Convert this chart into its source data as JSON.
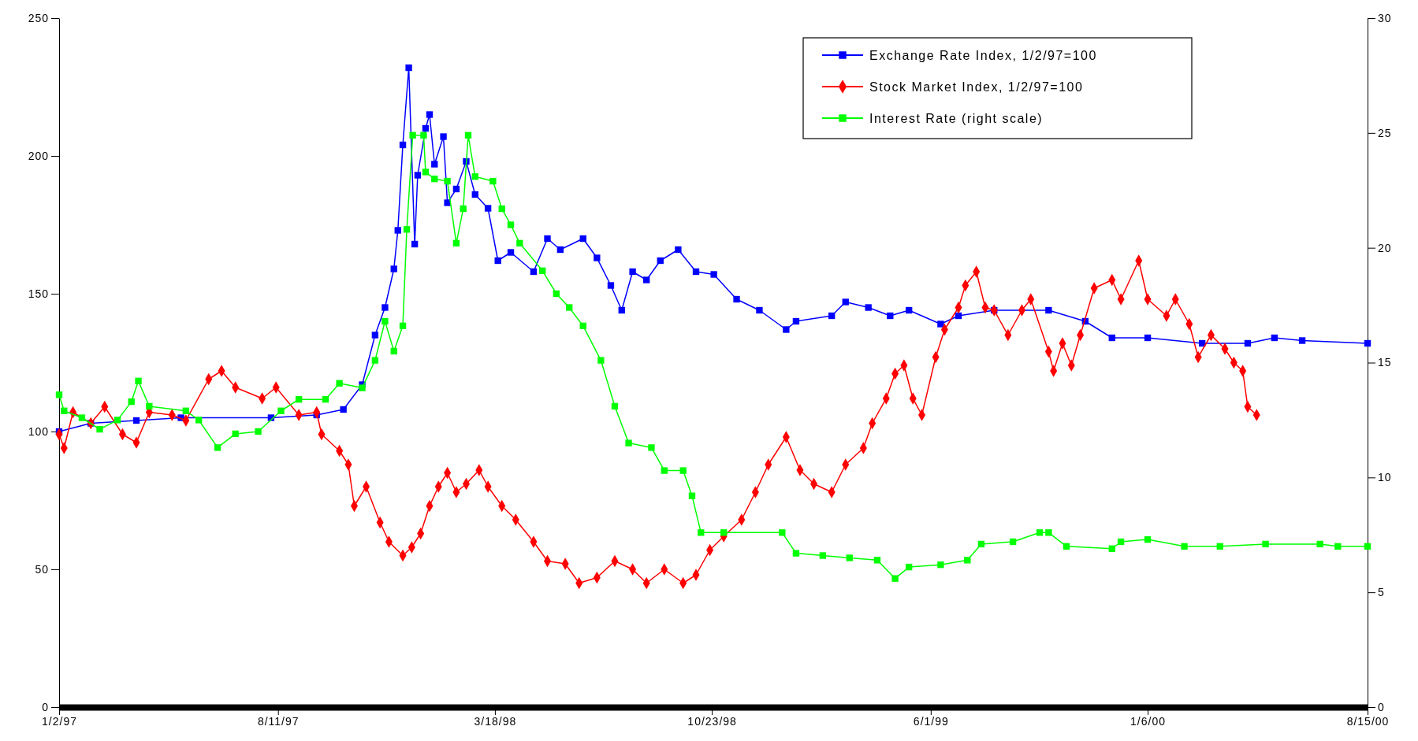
{
  "chart_data": {
    "type": "line",
    "legend": "top right",
    "xlim": [
      "1997-01-02",
      "2000-08-15"
    ],
    "xticks": [
      {
        "value": "1997-01-02",
        "label": "1/2/97"
      },
      {
        "value": "1997-08-11",
        "label": "8/11/97"
      },
      {
        "value": "1998-03-18",
        "label": "3/18/98"
      },
      {
        "value": "1998-10-23",
        "label": "10/23/98"
      },
      {
        "value": "1999-06-01",
        "label": "6/1/99"
      },
      {
        "value": "2000-01-06",
        "label": "1/6/00"
      },
      {
        "value": "2000-08-15",
        "label": "8/15/00"
      }
    ],
    "ylim": [
      0,
      250
    ],
    "yticks": [
      0,
      50,
      100,
      150,
      200,
      250
    ],
    "y2lim": [
      0,
      30
    ],
    "y2ticks": [
      0,
      5,
      10,
      15,
      20,
      25,
      30
    ],
    "series": [
      {
        "name": "Exchange Rate Index, 1/2/97=100",
        "color": "#0000ff",
        "marker": "square",
        "x": [
          "1997-01-02",
          "1997-02-03",
          "1997-03-21",
          "1997-05-05",
          "1997-08-04",
          "1997-09-19",
          "1997-10-16",
          "1997-11-04",
          "1997-11-17",
          "1997-11-27",
          "1997-12-06",
          "1997-12-10",
          "1997-12-15",
          "1997-12-21",
          "1997-12-27",
          "1997-12-30",
          "1998-01-07",
          "1998-01-11",
          "1998-01-16",
          "1998-01-25",
          "1998-01-29",
          "1998-02-07",
          "1998-02-17",
          "1998-02-26",
          "1998-03-11",
          "1998-03-21",
          "1998-04-03",
          "1998-04-26",
          "1998-05-10",
          "1998-05-23",
          "1998-06-15",
          "1998-06-29",
          "1998-07-13",
          "1998-07-24",
          "1998-08-04",
          "1998-08-18",
          "1998-09-01",
          "1998-09-19",
          "1998-10-07",
          "1998-10-25",
          "1998-11-17",
          "1998-12-10",
          "1999-01-06",
          "1999-01-16",
          "1999-02-21",
          "1999-03-07",
          "1999-03-30",
          "1999-04-21",
          "1999-05-10",
          "1999-06-11",
          "1999-06-29",
          "1999-08-04",
          "1999-09-28",
          "1999-11-04",
          "1999-12-01",
          "2000-01-06",
          "2000-03-01",
          "2000-04-16",
          "2000-05-13",
          "2000-06-10",
          "2000-08-15"
        ],
        "values": [
          100,
          103,
          104,
          105,
          105,
          106,
          108,
          117,
          135,
          145,
          159,
          173,
          204,
          232,
          168,
          193,
          210,
          215,
          197,
          207,
          183,
          188,
          198,
          186,
          181,
          162,
          165,
          158,
          170,
          166,
          170,
          163,
          153,
          144,
          158,
          155,
          162,
          166,
          158,
          157,
          148,
          144,
          137,
          140,
          142,
          147,
          145,
          142,
          144,
          139,
          142,
          144,
          144,
          140,
          134,
          134,
          132,
          132,
          134,
          133,
          132
        ]
      },
      {
        "name": "Stock Market Index, 1/2/97=100",
        "color": "#ff0000",
        "marker": "diamond",
        "x": [
          "1997-01-02",
          "1997-01-07",
          "1997-01-16",
          "1997-02-03",
          "1997-02-17",
          "1997-03-07",
          "1997-03-21",
          "1997-04-03",
          "1997-04-26",
          "1997-05-10",
          "1997-06-02",
          "1997-06-15",
          "1997-06-29",
          "1997-07-26",
          "1997-08-09",
          "1997-09-01",
          "1997-09-19",
          "1997-09-24",
          "1997-10-12",
          "1997-10-21",
          "1997-10-27",
          "1997-11-08",
          "1997-11-22",
          "1997-12-01",
          "1997-12-15",
          "1997-12-24",
          "1998-01-02",
          "1998-01-11",
          "1998-01-20",
          "1998-01-29",
          "1998-02-07",
          "1998-02-17",
          "1998-03-02",
          "1998-03-11",
          "1998-03-25",
          "1998-04-08",
          "1998-04-26",
          "1998-05-10",
          "1998-05-28",
          "1998-06-11",
          "1998-06-29",
          "1998-07-17",
          "1998-08-04",
          "1998-08-18",
          "1998-09-05",
          "1998-09-24",
          "1998-10-07",
          "1998-10-21",
          "1998-11-04",
          "1998-11-22",
          "1998-12-06",
          "1998-12-19",
          "1999-01-06",
          "1999-01-20",
          "1999-02-03",
          "1999-02-21",
          "1999-03-07",
          "1999-03-25",
          "1999-04-03",
          "1999-04-17",
          "1999-04-26",
          "1999-05-05",
          "1999-05-14",
          "1999-05-23",
          "1999-06-06",
          "1999-06-15",
          "1999-06-29",
          "1999-07-06",
          "1999-07-17",
          "1999-07-26",
          "1999-08-04",
          "1999-08-18",
          "1999-09-01",
          "1999-09-10",
          "1999-09-28",
          "1999-10-03",
          "1999-10-12",
          "1999-10-21",
          "1999-10-30",
          "1999-11-13",
          "1999-12-01",
          "1999-12-10",
          "1999-12-28",
          "2000-01-06",
          "2000-01-25",
          "2000-02-03",
          "2000-02-17",
          "2000-02-26",
          "2000-03-10",
          "2000-03-24",
          "2000-04-02",
          "2000-04-11",
          "2000-04-16",
          "2000-04-25"
        ],
        "values": [
          99,
          94,
          107,
          103,
          109,
          99,
          96,
          107,
          106,
          104,
          119,
          122,
          116,
          112,
          116,
          106,
          107,
          99,
          93,
          88,
          73,
          80,
          67,
          60,
          55,
          58,
          63,
          73,
          80,
          85,
          78,
          81,
          86,
          80,
          73,
          68,
          60,
          53,
          52,
          45,
          47,
          53,
          50,
          45,
          50,
          45,
          48,
          57,
          62,
          68,
          78,
          88,
          98,
          86,
          81,
          78,
          88,
          94,
          103,
          112,
          121,
          124,
          112,
          106,
          127,
          137,
          145,
          153,
          158,
          145,
          144,
          135,
          144,
          148,
          129,
          122,
          132,
          124,
          135,
          152,
          155,
          148,
          162,
          148,
          142,
          148,
          139,
          127,
          135,
          130,
          125,
          122,
          109,
          106
        ]
      },
      {
        "name": "Interest Rate (right scale)",
        "color": "#00ff00",
        "marker": "square",
        "axis": "y2",
        "x": [
          "1997-01-02",
          "1997-01-07",
          "1997-01-25",
          "1997-02-12",
          "1997-03-02",
          "1997-03-16",
          "1997-03-23",
          "1997-04-03",
          "1997-05-10",
          "1997-05-23",
          "1997-06-11",
          "1997-06-29",
          "1997-07-22",
          "1997-08-14",
          "1997-09-01",
          "1997-09-28",
          "1997-10-12",
          "1997-11-04",
          "1997-11-17",
          "1997-11-27",
          "1997-12-06",
          "1997-12-15",
          "1997-12-19",
          "1997-12-25",
          "1998-01-05",
          "1998-01-07",
          "1998-01-16",
          "1998-01-29",
          "1998-02-07",
          "1998-02-14",
          "1998-02-19",
          "1998-02-26",
          "1998-03-16",
          "1998-03-25",
          "1998-04-03",
          "1998-04-12",
          "1998-05-05",
          "1998-05-19",
          "1998-06-01",
          "1998-06-15",
          "1998-07-03",
          "1998-07-17",
          "1998-07-31",
          "1998-08-23",
          "1998-09-05",
          "1998-09-24",
          "1998-10-03",
          "1998-10-12",
          "1998-11-04",
          "1999-01-02",
          "1999-01-16",
          "1999-02-12",
          "1999-03-11",
          "1999-04-08",
          "1999-04-26",
          "1999-05-10",
          "1999-06-11",
          "1999-07-08",
          "1999-07-22",
          "1999-08-23",
          "1999-09-19",
          "1999-09-28",
          "1999-10-16",
          "1999-12-01",
          "1999-12-10",
          "2000-01-06",
          "2000-02-12",
          "2000-03-19",
          "2000-05-04",
          "2000-06-28",
          "2000-07-16",
          "2000-08-15"
        ],
        "values": [
          13.6,
          12.9,
          12.6,
          12.1,
          12.5,
          13.3,
          14.2,
          13.1,
          12.9,
          12.5,
          11.3,
          11.9,
          12.0,
          12.9,
          13.4,
          13.4,
          14.1,
          13.9,
          15.1,
          16.8,
          15.5,
          16.6,
          20.8,
          24.9,
          24.9,
          23.3,
          23.0,
          22.9,
          20.2,
          21.7,
          24.9,
          23.1,
          22.9,
          21.7,
          21.0,
          20.2,
          19.0,
          18.0,
          17.4,
          16.6,
          15.1,
          13.1,
          11.5,
          11.3,
          10.3,
          10.3,
          9.2,
          7.6,
          7.6,
          7.6,
          6.7,
          6.6,
          6.5,
          6.4,
          5.6,
          6.1,
          6.2,
          6.4,
          7.1,
          7.2,
          7.6,
          7.6,
          7.0,
          6.9,
          7.2,
          7.3,
          7.0,
          7.0,
          7.1,
          7.1,
          7.0,
          7.0
        ]
      }
    ]
  }
}
